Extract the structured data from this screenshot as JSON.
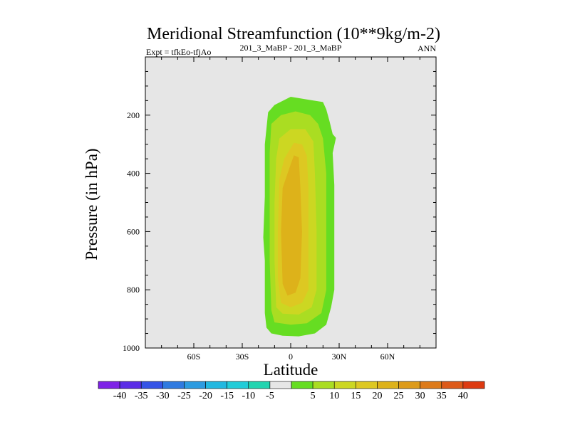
{
  "chart_data": {
    "type": "contour",
    "title": "Meridional Streamfunction (10**9kg/m-2)",
    "left_label": "Expt = tfkEo-tfjAo",
    "center_label": "201_3_MaBP - 201_3_MaBP",
    "right_label": "ANN",
    "xlabel": "Latitude",
    "ylabel": "Pressure (in hPa)",
    "x_range": [
      -90,
      90
    ],
    "y_range": [
      1000,
      0
    ],
    "x_ticks": [
      {
        "value": -60,
        "label": "60S"
      },
      {
        "value": -30,
        "label": "30S"
      },
      {
        "value": 0,
        "label": "0"
      },
      {
        "value": 30,
        "label": "30N"
      },
      {
        "value": 60,
        "label": "60N"
      }
    ],
    "y_ticks": [
      {
        "value": 200,
        "label": "200"
      },
      {
        "value": 400,
        "label": "400"
      },
      {
        "value": 600,
        "label": "600"
      },
      {
        "value": 800,
        "label": "800"
      },
      {
        "value": 1000,
        "label": "1000"
      }
    ],
    "background_color": "#e6e6e6",
    "contour_levels": [
      {
        "min": 5,
        "color": "#66dd22",
        "outline": [
          [
            -14,
            190
          ],
          [
            -10,
            165
          ],
          [
            0,
            137
          ],
          [
            12,
            148
          ],
          [
            20,
            155
          ],
          [
            22,
            180
          ],
          [
            24,
            220
          ],
          [
            26,
            265
          ],
          [
            28,
            278
          ],
          [
            26,
            330
          ],
          [
            27,
            440
          ],
          [
            27,
            600
          ],
          [
            27,
            800
          ],
          [
            25,
            860
          ],
          [
            22,
            920
          ],
          [
            15,
            950
          ],
          [
            5,
            960
          ],
          [
            -5,
            958
          ],
          [
            -12,
            950
          ],
          [
            -15,
            930
          ],
          [
            -16,
            880
          ],
          [
            -16,
            700
          ],
          [
            -17,
            620
          ],
          [
            -16,
            480
          ],
          [
            -16,
            300
          ]
        ]
      },
      {
        "min": 10,
        "color": "#aadd22",
        "outline": [
          [
            -12,
            230
          ],
          [
            -6,
            200
          ],
          [
            3,
            187
          ],
          [
            12,
            200
          ],
          [
            17,
            230
          ],
          [
            20,
            280
          ],
          [
            22,
            400
          ],
          [
            22,
            600
          ],
          [
            22,
            800
          ],
          [
            19,
            880
          ],
          [
            10,
            915
          ],
          [
            0,
            920
          ],
          [
            -10,
            912
          ],
          [
            -12,
            870
          ],
          [
            -13,
            700
          ],
          [
            -13,
            500
          ],
          [
            -13,
            330
          ]
        ]
      },
      {
        "min": 15,
        "color": "#ccd722",
        "outline": [
          [
            -7,
            280
          ],
          [
            0,
            248
          ],
          [
            9,
            248
          ],
          [
            14,
            290
          ],
          [
            15,
            400
          ],
          [
            16,
            600
          ],
          [
            16,
            800
          ],
          [
            13,
            860
          ],
          [
            5,
            885
          ],
          [
            -5,
            882
          ],
          [
            -9,
            860
          ],
          [
            -10,
            700
          ],
          [
            -10,
            500
          ],
          [
            -9,
            350
          ]
        ]
      },
      {
        "min": 20,
        "color": "#ddc822",
        "outline": [
          [
            -4,
            350
          ],
          [
            2,
            295
          ],
          [
            7,
            300
          ],
          [
            10,
            340
          ],
          [
            11,
            450
          ],
          [
            11,
            600
          ],
          [
            11,
            800
          ],
          [
            7,
            845
          ],
          [
            0,
            860
          ],
          [
            -6,
            845
          ],
          [
            -8,
            760
          ],
          [
            -8,
            600
          ],
          [
            -7,
            420
          ]
        ]
      },
      {
        "min": 25,
        "color": "#ddb21a",
        "outline": [
          [
            -1,
            385
          ],
          [
            2,
            338
          ],
          [
            5,
            345
          ],
          [
            6,
            450
          ],
          [
            7,
            600
          ],
          [
            6,
            760
          ],
          [
            3,
            810
          ],
          [
            -2,
            820
          ],
          [
            -5,
            780
          ],
          [
            -6,
            600
          ],
          [
            -5,
            450
          ]
        ]
      }
    ],
    "colorbar": {
      "colors": [
        "#7e22e6",
        "#5a2ce6",
        "#3553e6",
        "#2f7ae0",
        "#2c9be0",
        "#22b8e0",
        "#22ccd8",
        "#22d4b0",
        "#e6e6e6",
        "#66dd22",
        "#aadd22",
        "#ccd722",
        "#ddc822",
        "#ddb21a",
        "#dd9b1a",
        "#dd7a1a",
        "#dd5a1a",
        "#dd3a11"
      ],
      "labels": [
        "-40",
        "-35",
        "-30",
        "-25",
        "-20",
        "-15",
        "-10",
        "-5",
        "5",
        "10",
        "15",
        "20",
        "25",
        "30",
        "35",
        "40"
      ]
    }
  }
}
